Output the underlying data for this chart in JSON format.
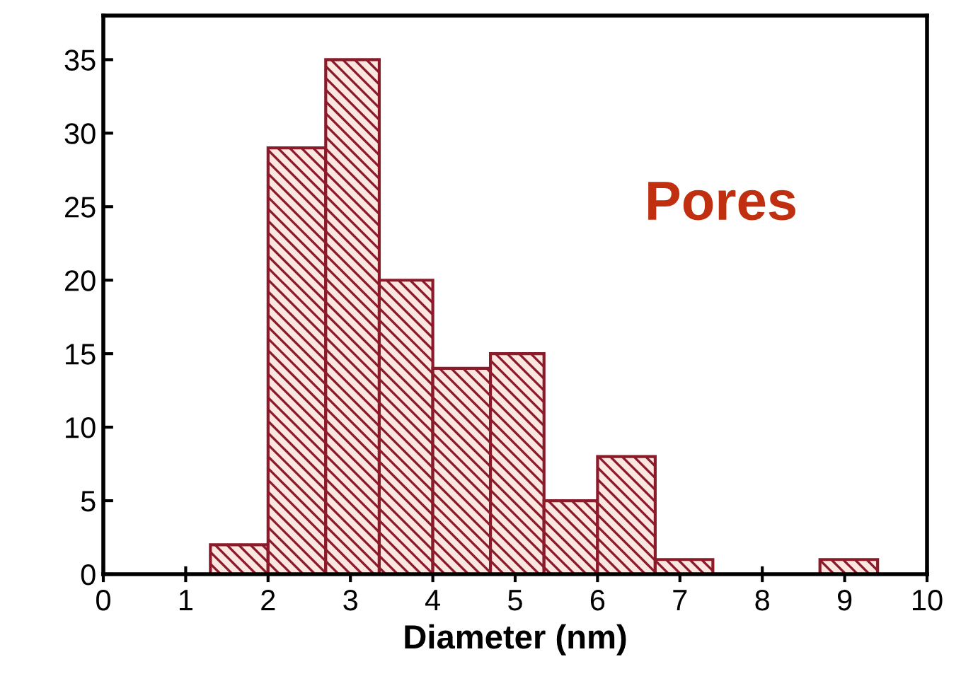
{
  "chart_data": {
    "type": "histogram",
    "xlabel": "Diameter (nm)",
    "bins": [
      1.3,
      2.0,
      2.7,
      3.35,
      4.0,
      4.7,
      5.35,
      6.0,
      6.7,
      7.4,
      8.05,
      8.7,
      9.4
    ],
    "values": [
      2,
      29,
      35,
      20,
      14,
      15,
      5,
      8,
      1,
      0,
      0,
      1
    ],
    "color": "#8b1a2a",
    "xlim": [
      0,
      10
    ],
    "xticks": [
      0,
      1,
      2,
      3,
      4,
      5,
      6,
      7,
      8,
      9,
      10
    ],
    "ylim": [
      0,
      38
    ],
    "yticks": [
      0,
      5,
      10,
      15,
      20,
      25,
      30,
      35
    ],
    "annotations": [
      "Pores"
    ],
    "grid": false
  }
}
